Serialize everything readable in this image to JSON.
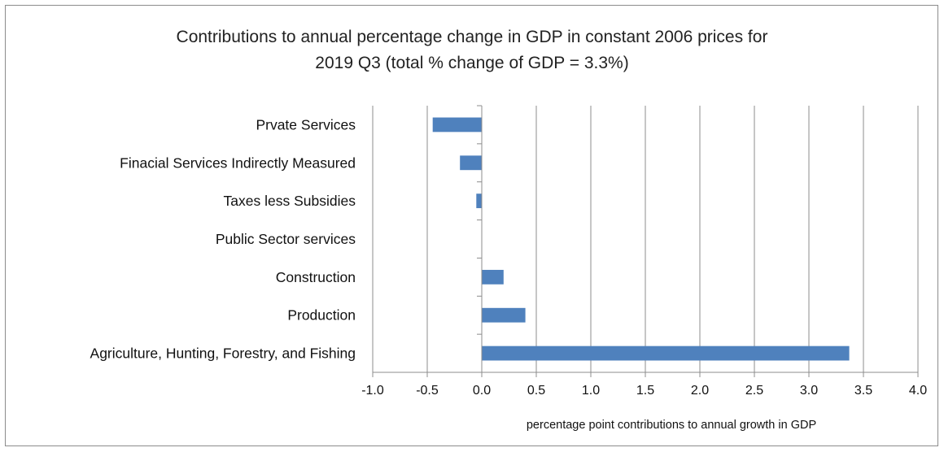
{
  "chart_data": {
    "type": "bar",
    "orientation": "horizontal",
    "title_line1": "Contributions to annual percentage change in GDP in constant 2006 prices for",
    "title_line2": "2019 Q3 (total % change of GDP = 3.3%)",
    "xlabel": "percentage point contributions to annual growth in GDP",
    "ylabel": "",
    "xlim": [
      -1.0,
      4.0
    ],
    "x_ticks": [
      "-1.0",
      "-0.5",
      "0.0",
      "0.5",
      "1.0",
      "1.5",
      "2.0",
      "2.5",
      "3.0",
      "3.5",
      "4.0"
    ],
    "categories": [
      "Prvate Services",
      "Finacial Services Indirectly Measured",
      "Taxes less Subsidies",
      "Public Sector services",
      "Construction",
      "Production",
      "Agriculture, Hunting, Forestry, and Fishing"
    ],
    "values": [
      -0.45,
      -0.2,
      -0.05,
      0.0,
      0.2,
      0.4,
      3.37
    ],
    "bar_color": "#4f81bd",
    "grid": true,
    "legend": false
  }
}
